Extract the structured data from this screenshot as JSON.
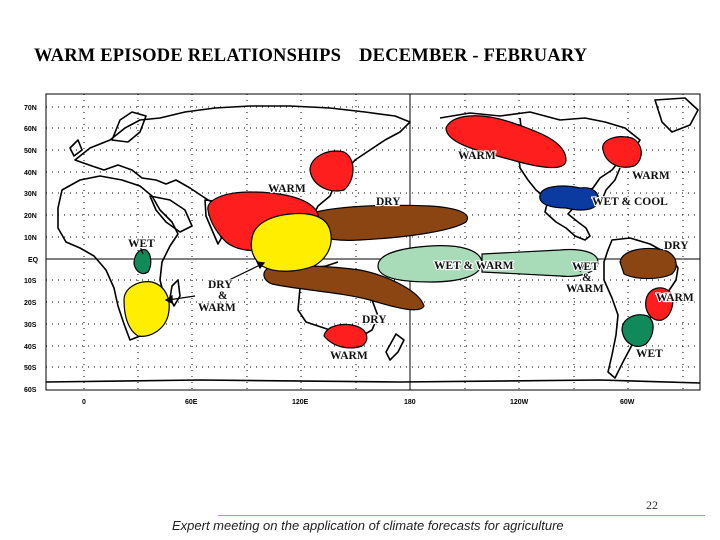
{
  "header": {
    "title_left": "WARM EPISODE RELATIONSHIPS",
    "title_right": "DECEMBER - FEBRUARY"
  },
  "map": {
    "lat_labels": [
      "70N",
      "60N",
      "50N",
      "40N",
      "30N",
      "20N",
      "10N",
      "EQ",
      "10S",
      "20S",
      "30S",
      "40S",
      "50S",
      "60S"
    ],
    "lon_labels": [
      "0",
      "60E",
      "120E",
      "180",
      "120W",
      "60W"
    ],
    "colors": {
      "warm": "#ff1e1e",
      "dry": "#8b4513",
      "wet": "#108a5a",
      "wet_warm": "#a8dcb8",
      "dry_warm": "#ffee00",
      "wet_cool": "#0b3aa0"
    },
    "regions": [
      {
        "label": "WARM",
        "type": "warm",
        "location": "Gulf of Alaska / NW North America"
      },
      {
        "label": "WARM",
        "type": "warm",
        "location": "Eastern Canada"
      },
      {
        "label": "WET & COOL",
        "type": "wet_cool",
        "location": "Gulf of Mexico / SE USA"
      },
      {
        "label": "DRY",
        "type": "dry",
        "location": "Northern South America"
      },
      {
        "label": "WARM",
        "type": "warm",
        "location": "Southeastern Brazil"
      },
      {
        "label": "WET",
        "type": "wet",
        "location": "Southern South America"
      },
      {
        "label": "WET & WARM",
        "type": "wet_warm",
        "location": "Central Pacific"
      },
      {
        "label": "WET & WARM",
        "type": "wet_warm",
        "location": "Eastern Pacific"
      },
      {
        "label": "DRY",
        "type": "dry",
        "location": "Western Pacific north of equator"
      },
      {
        "label": "DRY",
        "type": "dry",
        "location": "Northern Australia / SW Pacific"
      },
      {
        "label": "WARM",
        "type": "warm",
        "location": "Japan"
      },
      {
        "label": "WARM",
        "type": "warm",
        "location": "Southeast Asia"
      },
      {
        "label": "WARM",
        "type": "warm",
        "location": "Southeastern Australia"
      },
      {
        "label": "DRY & WARM",
        "type": "dry_warm",
        "location": "Southeastern Africa"
      },
      {
        "label": "DRY & WARM",
        "type": "dry_warm",
        "location": "Indonesia / Philippines"
      },
      {
        "label": "WET",
        "type": "wet",
        "location": "Equatorial East Africa"
      }
    ]
  },
  "footer": {
    "page_number": "22",
    "text": "Expert meeting on the application of climate forecasts for agriculture"
  }
}
